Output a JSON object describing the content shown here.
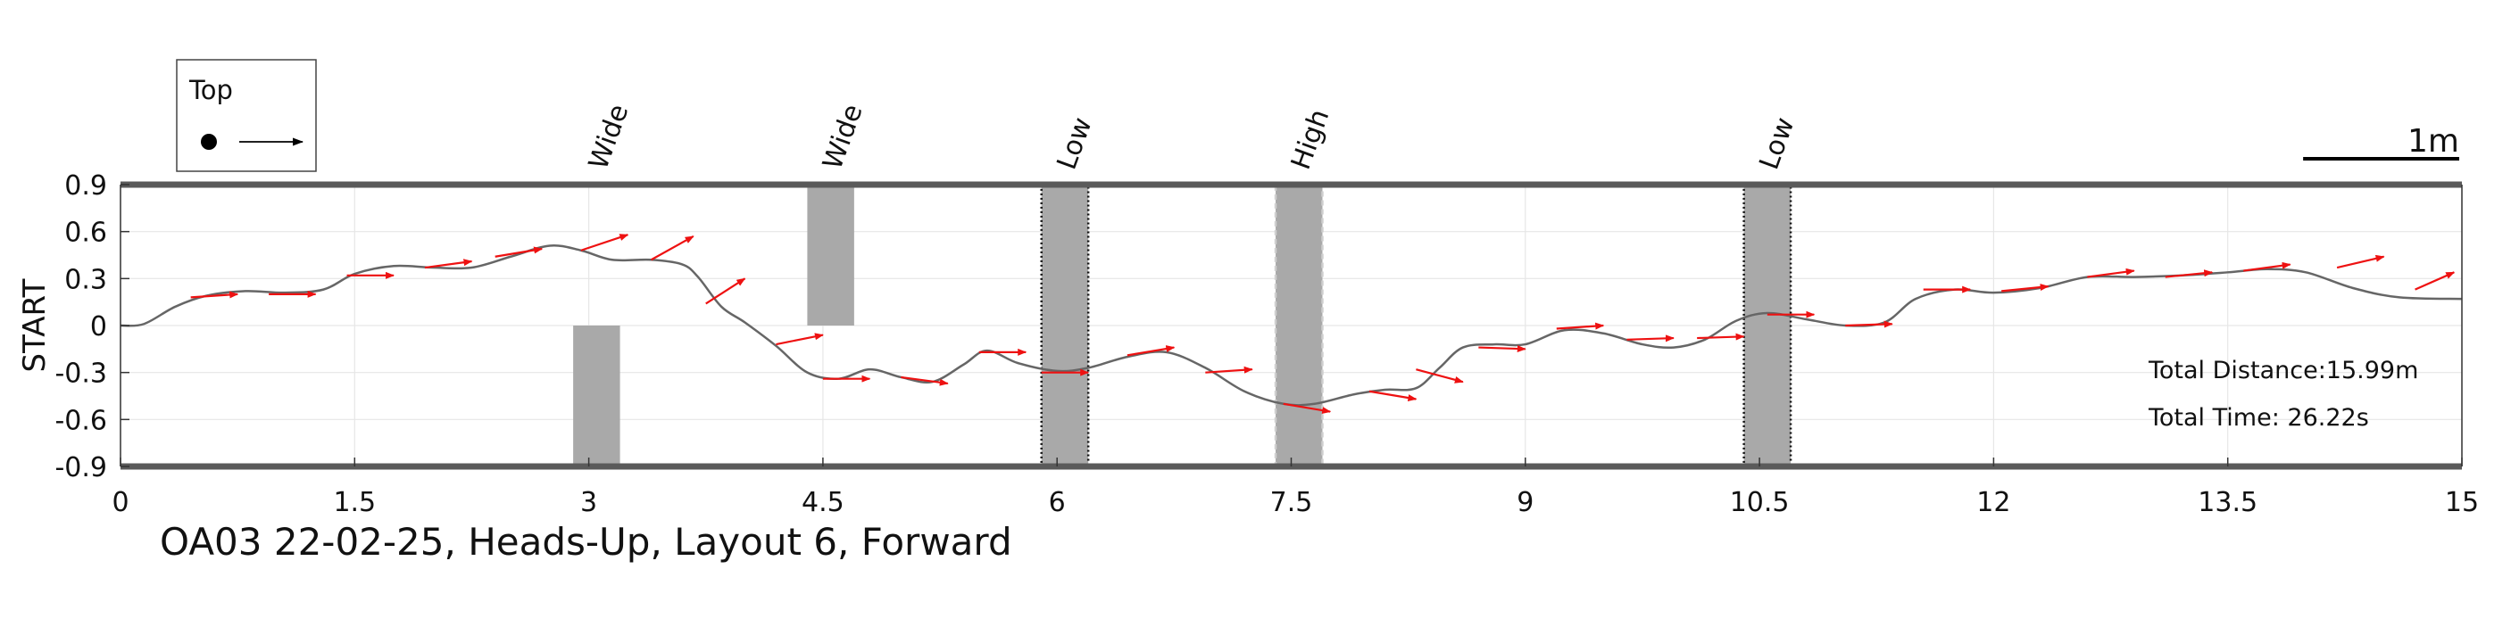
{
  "chart_data": {
    "type": "line",
    "title": "OA03 22-02-25, Heads-Up, Layout 6, Forward",
    "ylabel": "START",
    "xlabel": "",
    "xlim": [
      0,
      15
    ],
    "ylim": [
      -0.9,
      0.9
    ],
    "xticks": [
      0,
      1.5,
      3,
      4.5,
      6,
      7.5,
      9,
      10.5,
      12,
      13.5,
      15
    ],
    "yticks": [
      0.9,
      0.6,
      0.3,
      0,
      -0.3,
      -0.6,
      -0.9
    ],
    "xtick_labels": [
      "0",
      "1.5",
      "3",
      "4.5",
      "6",
      "7.5",
      "9",
      "10.5",
      "12",
      "13.5",
      "15"
    ],
    "ytick_labels": [
      "0.9",
      "0.6",
      "0.3",
      "0",
      "-0.3",
      "-0.6",
      "-0.9"
    ],
    "grid": true,
    "legend": {
      "title": "Top",
      "placement": "top-left"
    },
    "scale_bar": {
      "label": "1m",
      "length": 1.0
    },
    "stats": {
      "distance": "Total Distance:15.99m",
      "time": "Total Time: 26.22s"
    },
    "colors": {
      "path": "#666666",
      "arrows": "#ee1111",
      "obstacle": "#a9a9a9",
      "frame": "#555555"
    },
    "obstacles": [
      {
        "label": "Wide",
        "x": [
          2.9,
          3.2
        ],
        "y": [
          -0.9,
          0.0
        ],
        "border": "none"
      },
      {
        "label": "Wide",
        "x": [
          4.4,
          4.7
        ],
        "y": [
          0.0,
          0.9
        ],
        "border": "none"
      },
      {
        "label": "Low",
        "x": [
          5.9,
          6.2
        ],
        "y": [
          -0.9,
          0.9
        ],
        "border": "dotted-dark"
      },
      {
        "label": "High",
        "x": [
          7.4,
          7.7
        ],
        "y": [
          -0.9,
          0.9
        ],
        "border": "dashed-light"
      },
      {
        "label": "Low",
        "x": [
          10.4,
          10.7
        ],
        "y": [
          -0.9,
          0.9
        ],
        "border": "dotted-dark"
      }
    ],
    "series": [
      {
        "x": [
          0,
          0.15,
          0.35,
          0.55,
          0.8,
          1.05,
          1.3,
          1.5,
          1.75,
          2.0,
          2.25,
          2.5,
          2.75,
          2.95,
          3.15,
          3.4,
          3.6,
          3.7,
          3.85,
          4.0,
          4.2,
          4.4,
          4.6,
          4.8,
          5.0,
          5.2,
          5.4,
          5.55,
          5.75,
          6.0,
          6.2,
          6.45,
          6.7,
          6.95,
          7.2,
          7.45,
          7.65,
          7.9,
          8.1,
          8.3,
          8.45,
          8.6,
          8.8,
          9.0,
          9.25,
          9.5,
          9.75,
          9.95,
          10.15,
          10.35,
          10.55,
          10.8,
          11.05,
          11.3,
          11.5,
          11.75,
          12.0,
          12.3,
          12.6,
          12.9,
          13.2,
          13.5,
          13.75,
          14.0,
          14.3,
          14.6,
          15.0
        ],
        "y": [
          0.0,
          0.01,
          0.12,
          0.19,
          0.22,
          0.21,
          0.23,
          0.33,
          0.38,
          0.37,
          0.37,
          0.44,
          0.51,
          0.48,
          0.42,
          0.42,
          0.39,
          0.31,
          0.12,
          0.02,
          -0.13,
          -0.3,
          -0.34,
          -0.28,
          -0.33,
          -0.36,
          -0.25,
          -0.16,
          -0.24,
          -0.29,
          -0.27,
          -0.2,
          -0.17,
          -0.27,
          -0.42,
          -0.5,
          -0.5,
          -0.44,
          -0.41,
          -0.4,
          -0.27,
          -0.14,
          -0.12,
          -0.12,
          -0.03,
          -0.05,
          -0.12,
          -0.14,
          -0.09,
          0.03,
          0.08,
          0.04,
          0.0,
          0.02,
          0.17,
          0.23,
          0.21,
          0.24,
          0.31,
          0.31,
          0.32,
          0.34,
          0.36,
          0.34,
          0.24,
          0.18,
          0.17
        ]
      }
    ],
    "heading_arrows": [
      {
        "x": 0.45,
        "y": 0.18,
        "dx": 0.3,
        "dy": 0.02
      },
      {
        "x": 0.95,
        "y": 0.2,
        "dx": 0.3,
        "dy": 0.0
      },
      {
        "x": 1.45,
        "y": 0.32,
        "dx": 0.3,
        "dy": 0.0
      },
      {
        "x": 1.95,
        "y": 0.37,
        "dx": 0.3,
        "dy": 0.04
      },
      {
        "x": 2.4,
        "y": 0.44,
        "dx": 0.3,
        "dy": 0.05
      },
      {
        "x": 2.95,
        "y": 0.48,
        "dx": 0.3,
        "dy": 0.1
      },
      {
        "x": 3.4,
        "y": 0.42,
        "dx": 0.27,
        "dy": 0.15
      },
      {
        "x": 3.75,
        "y": 0.14,
        "dx": 0.25,
        "dy": 0.16
      },
      {
        "x": 4.2,
        "y": -0.12,
        "dx": 0.3,
        "dy": 0.06
      },
      {
        "x": 4.5,
        "y": -0.34,
        "dx": 0.3,
        "dy": 0.0
      },
      {
        "x": 5.0,
        "y": -0.33,
        "dx": 0.3,
        "dy": -0.04
      },
      {
        "x": 5.5,
        "y": -0.17,
        "dx": 0.3,
        "dy": 0.0
      },
      {
        "x": 5.9,
        "y": -0.3,
        "dx": 0.3,
        "dy": 0.0
      },
      {
        "x": 6.45,
        "y": -0.19,
        "dx": 0.3,
        "dy": 0.05
      },
      {
        "x": 6.95,
        "y": -0.3,
        "dx": 0.3,
        "dy": 0.02
      },
      {
        "x": 7.45,
        "y": -0.5,
        "dx": 0.3,
        "dy": -0.05
      },
      {
        "x": 8.0,
        "y": -0.42,
        "dx": 0.3,
        "dy": -0.05
      },
      {
        "x": 8.3,
        "y": -0.28,
        "dx": 0.3,
        "dy": -0.08
      },
      {
        "x": 8.7,
        "y": -0.14,
        "dx": 0.3,
        "dy": -0.01
      },
      {
        "x": 9.2,
        "y": -0.02,
        "dx": 0.3,
        "dy": 0.02
      },
      {
        "x": 9.65,
        "y": -0.09,
        "dx": 0.3,
        "dy": 0.01
      },
      {
        "x": 10.1,
        "y": -0.08,
        "dx": 0.3,
        "dy": 0.01
      },
      {
        "x": 10.55,
        "y": 0.07,
        "dx": 0.3,
        "dy": 0.0
      },
      {
        "x": 11.05,
        "y": 0.0,
        "dx": 0.3,
        "dy": 0.01
      },
      {
        "x": 11.55,
        "y": 0.23,
        "dx": 0.3,
        "dy": 0.0
      },
      {
        "x": 12.05,
        "y": 0.22,
        "dx": 0.3,
        "dy": 0.03
      },
      {
        "x": 12.6,
        "y": 0.31,
        "dx": 0.3,
        "dy": 0.04
      },
      {
        "x": 13.1,
        "y": 0.31,
        "dx": 0.3,
        "dy": 0.03
      },
      {
        "x": 13.6,
        "y": 0.35,
        "dx": 0.3,
        "dy": 0.04
      },
      {
        "x": 14.2,
        "y": 0.37,
        "dx": 0.3,
        "dy": 0.07
      },
      {
        "x": 14.7,
        "y": 0.23,
        "dx": 0.25,
        "dy": 0.11
      }
    ]
  }
}
